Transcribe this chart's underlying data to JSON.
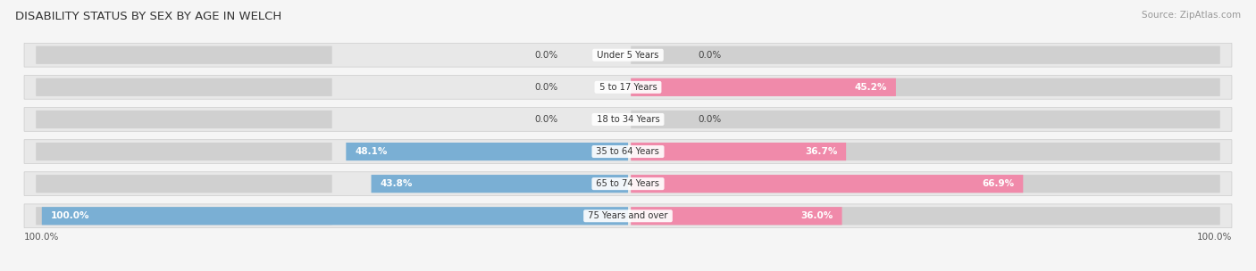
{
  "title": "Disability Status by Sex by Age in Welch",
  "source": "Source: ZipAtlas.com",
  "categories": [
    "Under 5 Years",
    "5 to 17 Years",
    "18 to 34 Years",
    "35 to 64 Years",
    "65 to 74 Years",
    "75 Years and over"
  ],
  "male_values": [
    0.0,
    0.0,
    0.0,
    48.1,
    43.8,
    100.0
  ],
  "female_values": [
    0.0,
    45.2,
    0.0,
    36.7,
    66.9,
    36.0
  ],
  "male_color": "#7aafd4",
  "female_color": "#f08aaa",
  "bg_row_color": "#e8e8e8",
  "bg_fig_color": "#f5f5f5",
  "bar_inner_color": "#d0d0d0",
  "max_value": 100.0,
  "label_inside_threshold": 8.0
}
